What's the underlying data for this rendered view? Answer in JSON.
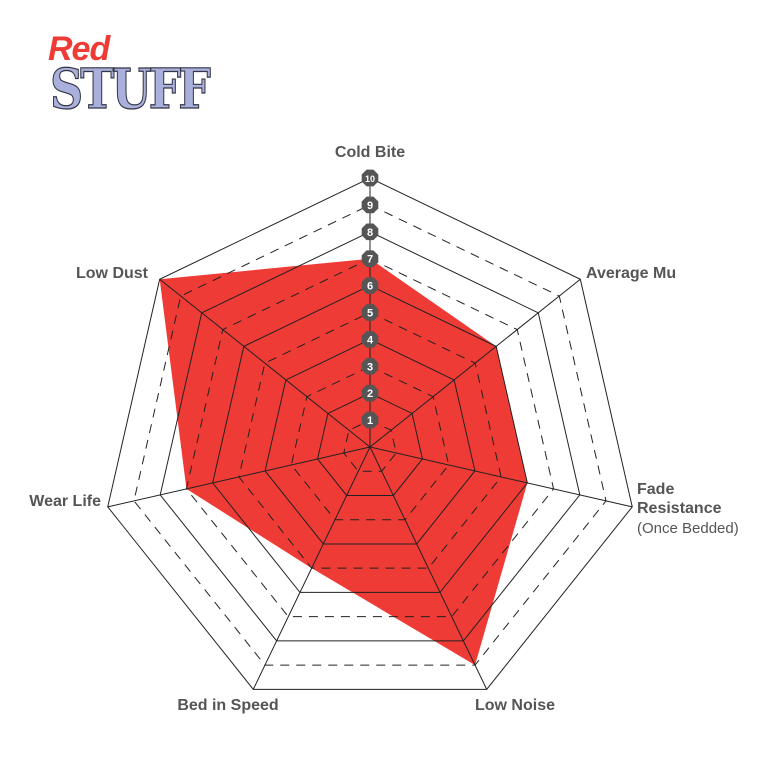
{
  "logo": {
    "text_top": "Red",
    "text_bottom": "STUFF"
  },
  "chart_data": {
    "type": "radar",
    "axes": [
      "Cold Bite",
      "Average Mu",
      "Fade Resistance",
      "Low Noise",
      "Bed in Speed",
      "Wear Life",
      "Low Dust"
    ],
    "axis_sublabels": {
      "Fade Resistance": "(Once Bedded)"
    },
    "values": [
      7,
      6,
      6,
      9,
      5,
      7,
      10
    ],
    "range": [
      0,
      10
    ],
    "tick_labels": [
      "1",
      "2",
      "3",
      "4",
      "5",
      "6",
      "7",
      "8",
      "9",
      "10"
    ],
    "fill_color": "#ef3b36",
    "grid": "heptagonal rings, solid at even values, dashed at odd values"
  }
}
